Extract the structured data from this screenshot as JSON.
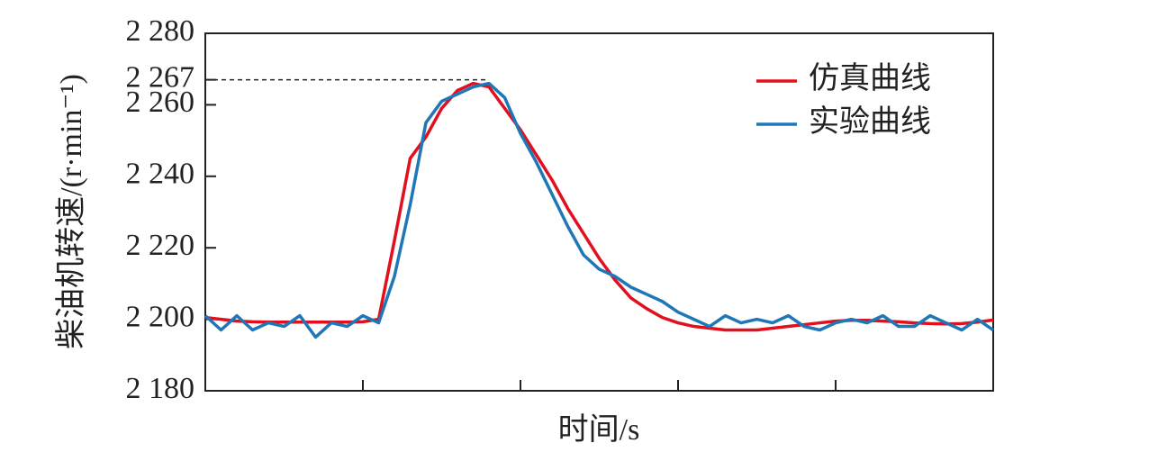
{
  "chart_data": {
    "type": "line",
    "xlabel": "时间/s",
    "ylabel": "柴油机转速/(r·min⁻¹)",
    "xlim": [
      0,
      5
    ],
    "xticks": [
      0,
      1,
      2,
      3,
      4,
      5
    ],
    "ylim": [
      2180,
      2280
    ],
    "yticks": [
      {
        "value": 2180,
        "label": "2 180"
      },
      {
        "value": 2200,
        "label": "2 200"
      },
      {
        "value": 2220,
        "label": "2 220"
      },
      {
        "value": 2240,
        "label": "2 240"
      },
      {
        "value": 2260,
        "label": "2 260"
      },
      {
        "value": 2267,
        "label": "2 267"
      },
      {
        "value": 2280,
        "label": "2 280"
      }
    ],
    "reference_line": {
      "y": 2267,
      "x_end": 1.8
    },
    "legend": "upper right",
    "x": [
      0,
      0.1,
      0.2,
      0.3,
      0.4,
      0.5,
      0.6,
      0.7,
      0.8,
      0.9,
      1.0,
      1.1,
      1.2,
      1.3,
      1.4,
      1.5,
      1.6,
      1.7,
      1.8,
      1.9,
      2.0,
      2.1,
      2.2,
      2.3,
      2.4,
      2.5,
      2.6,
      2.7,
      2.8,
      2.9,
      3.0,
      3.1,
      3.2,
      3.3,
      3.4,
      3.5,
      3.6,
      3.7,
      3.8,
      3.9,
      4.0,
      4.1,
      4.2,
      4.3,
      4.4,
      4.5,
      4.6,
      4.7,
      4.8,
      4.9,
      5.0
    ],
    "series": [
      {
        "name": "仿真曲线",
        "color": "#e0101e",
        "values": [
          2200.5,
          2200,
          2199.5,
          2199.3,
          2199.2,
          2199.2,
          2199.2,
          2199.2,
          2199.2,
          2199.2,
          2199.3,
          2200,
          2222,
          2245,
          2251,
          2259,
          2264,
          2266,
          2265,
          2259,
          2253,
          2246,
          2239,
          2231,
          2224,
          2217,
          2211,
          2206,
          2203,
          2200.5,
          2199,
          2198,
          2197.5,
          2197,
          2197,
          2197,
          2197.5,
          2198,
          2198.5,
          2199,
          2199.5,
          2199.7,
          2199.7,
          2199.5,
          2199.3,
          2199,
          2198.8,
          2198.7,
          2198.8,
          2199.2,
          2199.8
        ]
      },
      {
        "name": "实验曲线",
        "color": "#1f77b8",
        "values": [
          2201,
          2197,
          2201,
          2197,
          2199,
          2198,
          2201,
          2195,
          2199,
          2198,
          2201,
          2199,
          2212,
          2232,
          2255,
          2261,
          2263,
          2265,
          2266,
          2262,
          2252,
          2244,
          2235,
          2226,
          2218,
          2214,
          2212,
          2209,
          2207,
          2205,
          2202,
          2200,
          2198,
          2201,
          2199,
          2200,
          2199,
          2201,
          2198,
          2197,
          2199,
          2200,
          2199,
          2201,
          2198,
          2198,
          2201,
          2199,
          2197,
          2200,
          2197
        ]
      }
    ]
  }
}
